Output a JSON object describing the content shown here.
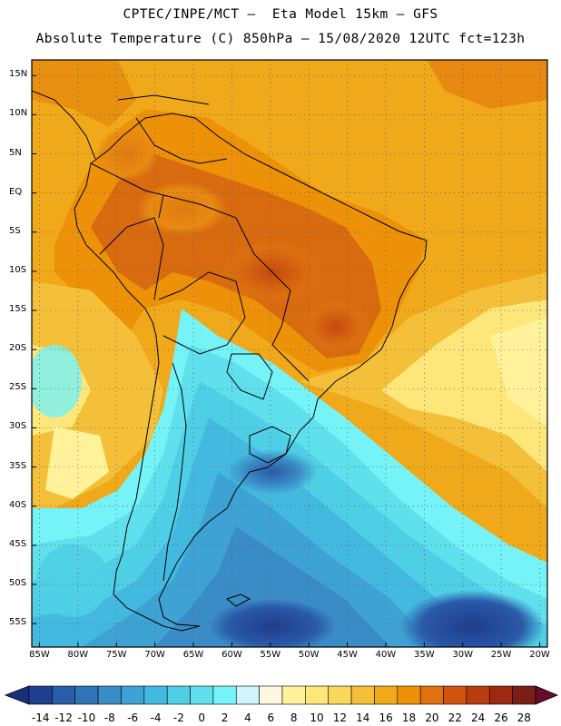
{
  "header": {
    "title_line1": "CPTEC/INPE/MCT –  Eta Model 15km – GFS",
    "title_line2": "Absolute Temperature (C) 850hPa – 15/08/2020 12UTC fct=123h"
  },
  "chart_data": {
    "type": "heatmap",
    "variable": "Absolute Temperature (C) 850hPa",
    "model": "Eta Model 15km – GFS",
    "valid": "15/08/2020 12UTC",
    "forecast_hour": "fct=123h",
    "lon_range": [
      -86,
      -19
    ],
    "lat_range": [
      -58,
      17
    ],
    "ylabels": [
      "15N",
      "10N",
      "5N",
      "EQ",
      "5S",
      "10S",
      "15S",
      "20S",
      "25S",
      "30S",
      "35S",
      "40S",
      "45S",
      "50S",
      "55S"
    ],
    "ylabel_values": [
      15,
      10,
      5,
      0,
      -5,
      -10,
      -15,
      -20,
      -25,
      -30,
      -35,
      -40,
      -45,
      -50,
      -55
    ],
    "xlabels": [
      "85W",
      "80W",
      "75W",
      "70W",
      "65W",
      "60W",
      "55W",
      "50W",
      "45W",
      "40W",
      "35W",
      "30W",
      "25W",
      "20W"
    ],
    "xlabel_values": [
      -85,
      -80,
      -75,
      -70,
      -65,
      -60,
      -55,
      -50,
      -45,
      -40,
      -35,
      -30,
      -25,
      -20
    ],
    "colorbar_labels": [
      "-14",
      "-12",
      "-10",
      "-8",
      "-6",
      "-4",
      "-2",
      "0",
      "2",
      "4",
      "6",
      "8",
      "10",
      "12",
      "14",
      "16",
      "18",
      "20",
      "22",
      "24",
      "26",
      "28"
    ],
    "colorbar_values": [
      -14,
      -12,
      -10,
      -8,
      -6,
      -4,
      -2,
      0,
      2,
      4,
      6,
      8,
      10,
      12,
      14,
      16,
      18,
      20,
      22,
      24,
      26,
      28
    ],
    "colorbar_colors": [
      "#1f3f8f",
      "#2a5da8",
      "#2f74b5",
      "#3a8cc6",
      "#3ea3d4",
      "#44b9e0",
      "#4fcfe6",
      "#5fe0ec",
      "#75f3f6",
      "#cff5fa",
      "#fff7e2",
      "#fff29a",
      "#fde77a",
      "#f9d75a",
      "#f4c03a",
      "#f0a91a",
      "#ed9108",
      "#e07010",
      "#cf5410",
      "#b83c10",
      "#9d2a10",
      "#7a1e18"
    ],
    "colorbar_under": "#1a2f7a",
    "colorbar_over": "#6a0a2a"
  }
}
